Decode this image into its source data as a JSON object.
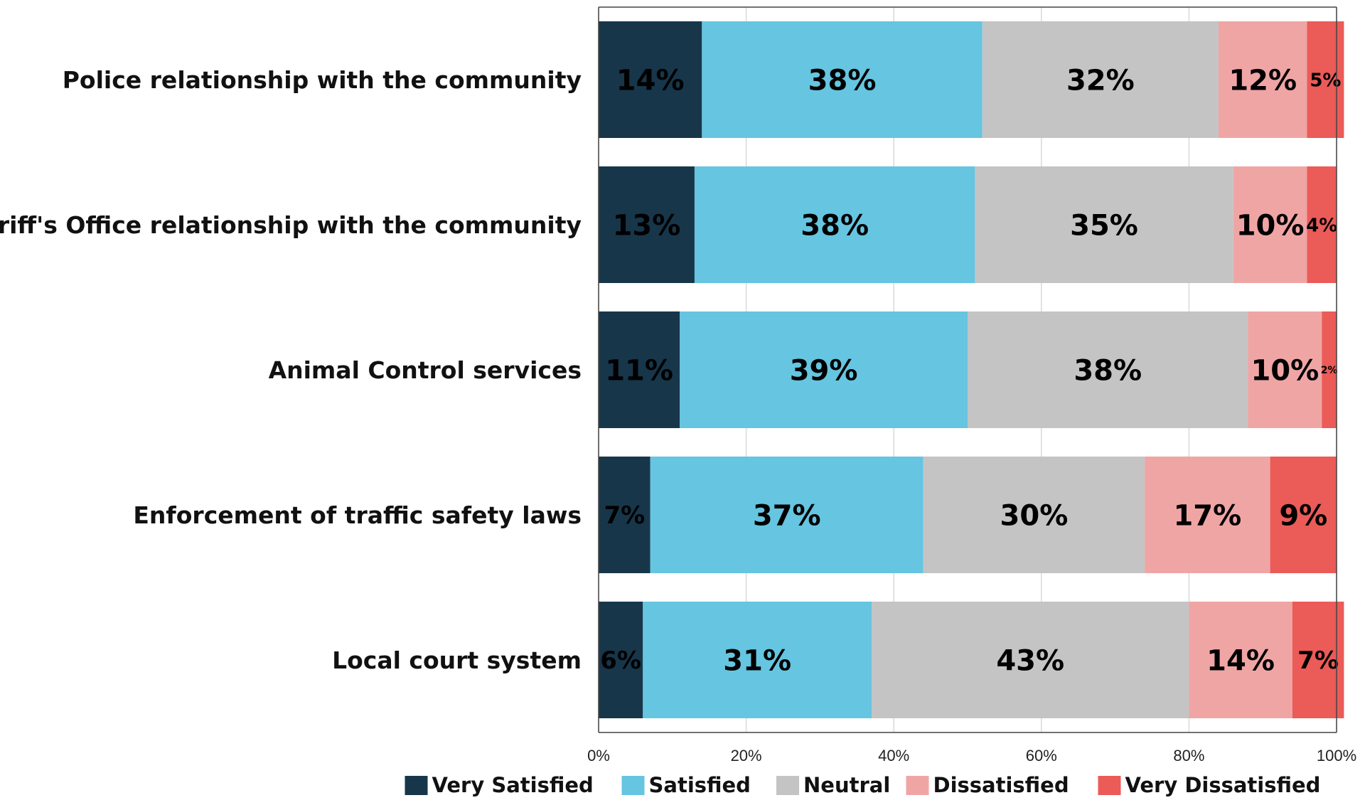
{
  "chart_data": {
    "type": "bar",
    "orientation": "horizontal",
    "stacked": true,
    "title": "",
    "xlabel": "",
    "ylabel": "",
    "xlim": [
      0,
      100
    ],
    "x_ticks": [
      "0%",
      "20%",
      "40%",
      "60%",
      "80%",
      "100%"
    ],
    "grid": true,
    "legend_position": "bottom",
    "categories": [
      "Police relationship with the community",
      "Sheriff's Office relationship with the community",
      "Animal Control services",
      "Enforcement of traffic safety laws",
      "Local court system"
    ],
    "series": [
      {
        "name": "Very Satisfied",
        "color": "#17364a",
        "label_color": "#ffffff",
        "values": [
          14,
          13,
          11,
          7,
          6
        ]
      },
      {
        "name": "Satisfied",
        "color": "#66c5e0",
        "label_color": "#ffffff",
        "values": [
          38,
          38,
          39,
          37,
          31
        ]
      },
      {
        "name": "Neutral",
        "color": "#c4c4c4",
        "label_color": "#000000",
        "values": [
          32,
          35,
          38,
          30,
          43
        ]
      },
      {
        "name": "Dissatisfied",
        "color": "#f0a5a5",
        "label_color": "#000000",
        "values": [
          12,
          10,
          10,
          17,
          14
        ]
      },
      {
        "name": "Very Dissatisfied",
        "color": "#eb5b57",
        "label_color": "#000000",
        "values": [
          5,
          4,
          2,
          9,
          7
        ]
      }
    ]
  }
}
